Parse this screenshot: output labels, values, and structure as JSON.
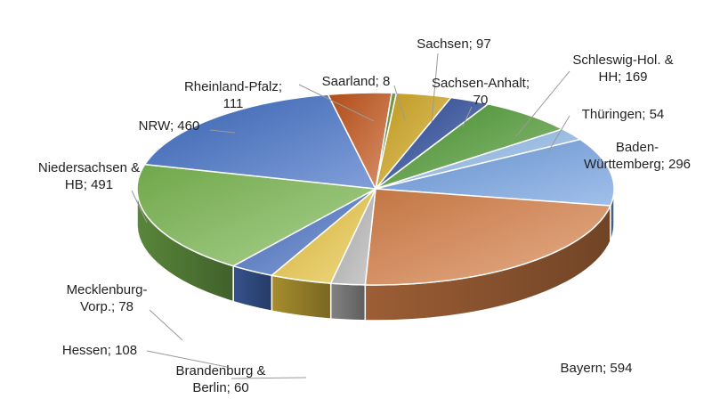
{
  "chart_data": {
    "type": "pie",
    "style": "3d",
    "slices": [
      {
        "name": "Sachsen",
        "value": 97,
        "label_lines": [
          "Sachsen; 97"
        ],
        "color": "#d2a820"
      },
      {
        "name": "Sachsen-Anhalt",
        "value": 70,
        "label_lines": [
          "Sachsen-Anhalt;",
          "70"
        ],
        "color": "#2a4a9a"
      },
      {
        "name": "Schleswig-Hol. & HH",
        "value": 169,
        "label_lines": [
          "Schleswig-Hol. &",
          "HH; 169"
        ],
        "color": "#4e9a32"
      },
      {
        "name": "Thüringen",
        "value": 54,
        "label_lines": [
          "Thüringen; 54"
        ],
        "color": "#8fb8e8"
      },
      {
        "name": "Baden-Württemberg",
        "value": 296,
        "label_lines": [
          "Baden-",
          "Württemberg; 296"
        ],
        "color": "#6f9ee0"
      },
      {
        "name": "Bayern",
        "value": 594,
        "label_lines": [
          "Bayern; 594"
        ],
        "color": "#d9824a"
      },
      {
        "name": "Brandenburg & Berlin",
        "value": 60,
        "label_lines": [
          "Brandenburg &",
          "Berlin; 60"
        ],
        "color": "#b4b4b4"
      },
      {
        "name": "Hessen",
        "value": 108,
        "label_lines": [
          "Hessen; 108"
        ],
        "color": "#e8c440"
      },
      {
        "name": "Mecklenburg-Vorp.",
        "value": 78,
        "label_lines": [
          "Mecklenburg-",
          "Vorp.; 78"
        ],
        "color": "#4a72c4"
      },
      {
        "name": "Niedersachsen & HB",
        "value": 491,
        "label_lines": [
          "Niedersachsen &",
          "HB; 491"
        ],
        "color": "#7cba52"
      },
      {
        "name": "NRW",
        "value": 460,
        "label_lines": [
          "NRW; 460"
        ],
        "color": "#3d6cc4"
      },
      {
        "name": "Rheinland-Pfalz",
        "value": 111,
        "label_lines": [
          "Rheinland-Pfalz;",
          "111"
        ],
        "color": "#c4541a"
      },
      {
        "name": "Saarland",
        "value": 8,
        "label_lines": [
          "Saarland; 8"
        ],
        "color": "#5a8a2a"
      }
    ]
  }
}
